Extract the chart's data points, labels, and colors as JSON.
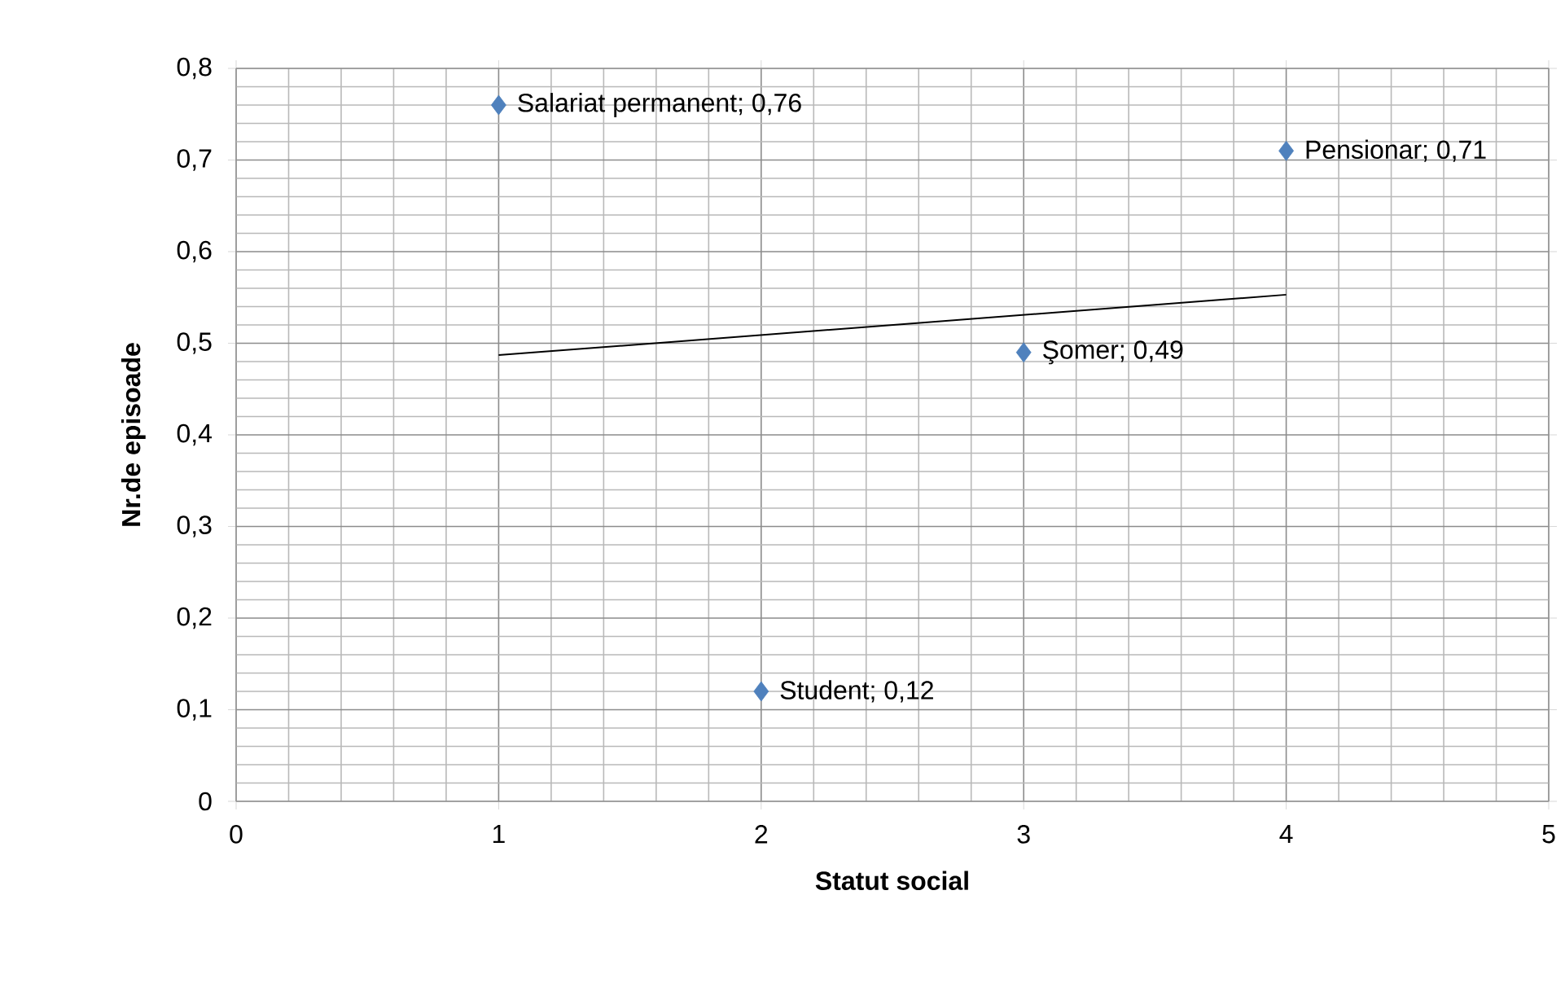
{
  "chart_data": {
    "type": "scatter",
    "xlabel": "Statut social",
    "ylabel": "Nr.de episoade",
    "xlim": [
      0,
      5
    ],
    "xticks": [
      0,
      1,
      2,
      3,
      4,
      5
    ],
    "ylim": [
      0,
      0.8
    ],
    "yticks": [
      {
        "value": 0,
        "label": "0"
      },
      {
        "value": 0.1,
        "label": "0,1"
      },
      {
        "value": 0.2,
        "label": "0,2"
      },
      {
        "value": 0.3,
        "label": "0,3"
      },
      {
        "value": 0.4,
        "label": "0,4"
      },
      {
        "value": 0.5,
        "label": "0,5"
      },
      {
        "value": 0.6,
        "label": "0,6"
      },
      {
        "value": 0.7,
        "label": "0,7"
      },
      {
        "value": 0.8,
        "label": "0,8"
      }
    ],
    "grid": true,
    "series": [
      {
        "marker": "diamond",
        "color": "#4f81bd",
        "x": [
          1,
          2,
          3,
          4
        ],
        "values": [
          0.76,
          0.12,
          0.49,
          0.71
        ],
        "value_labels": [
          "Salariat permanent; 0,76",
          "Student; 0,12",
          "Şomer; 0,49",
          "Pensionar; 0,71"
        ]
      },
      {
        "type": "line",
        "color": "#000000",
        "line_style": "solid",
        "marker": "none",
        "x": [
          1,
          4
        ],
        "values": [
          0.487,
          0.553
        ]
      }
    ]
  }
}
